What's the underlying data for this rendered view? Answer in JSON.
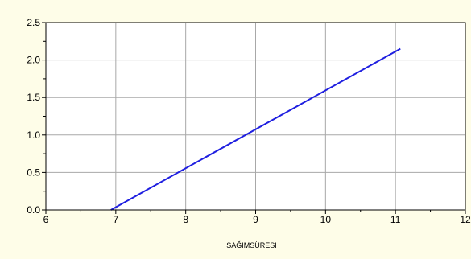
{
  "chart_data": {
    "type": "line",
    "title": "",
    "xlabel": "SAĞIMSÜRESI",
    "ylabel": "",
    "xlim": [
      6,
      12
    ],
    "ylim": [
      0,
      2.5
    ],
    "x_ticks": [
      "6",
      "7",
      "8",
      "9",
      "10",
      "11",
      "12"
    ],
    "y_ticks": [
      "0.0",
      "0.5",
      "1.0",
      "1.5",
      "2.0",
      "2.5"
    ],
    "grid": true,
    "series": [
      {
        "color": "#1f1fe0",
        "x": [
          6.93,
          11.07
        ],
        "y": [
          0.0,
          2.15
        ]
      }
    ],
    "colors": {
      "background": "#fefde8",
      "plot_background": "#ffffff",
      "grid": "#a8a8a8"
    }
  }
}
